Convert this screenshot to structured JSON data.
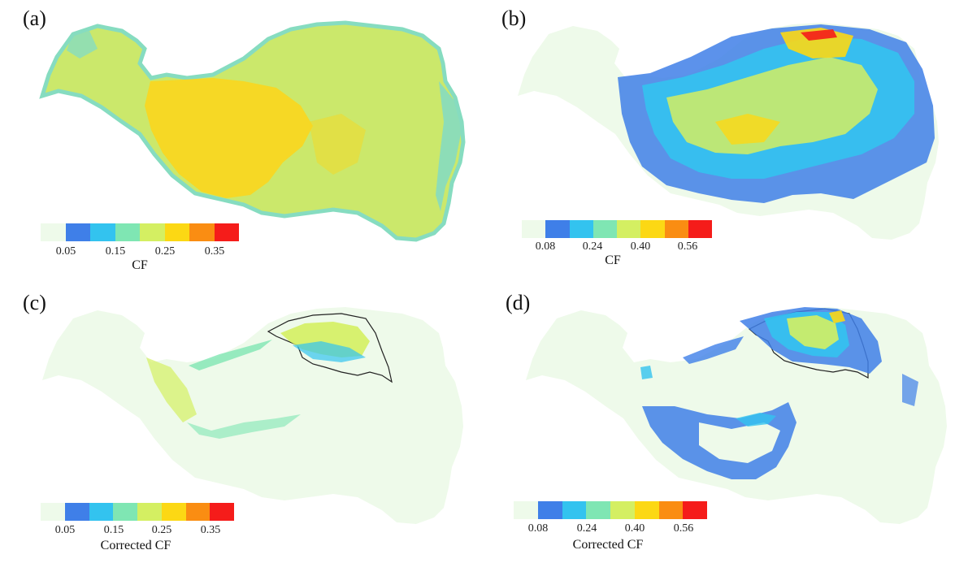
{
  "panels": {
    "a": {
      "label": "(a)",
      "legend_title": "CF",
      "ticks": [
        "0.05",
        "0.15",
        "0.25",
        "0.35"
      ]
    },
    "b": {
      "label": "(b)",
      "legend_title": "CF",
      "ticks": [
        "0.08",
        "0.24",
        "0.40",
        "0.56"
      ]
    },
    "c": {
      "label": "(c)",
      "legend_title": "Corrected CF",
      "ticks": [
        "0.05",
        "0.15",
        "0.25",
        "0.35"
      ]
    },
    "d": {
      "label": "(d)",
      "legend_title": "Corrected CF",
      "ticks": [
        "0.08",
        "0.24",
        "0.40",
        "0.56"
      ]
    }
  },
  "colors": {
    "background_class": "#eefaea",
    "classes": [
      "#eefaea",
      "#3f7fe8",
      "#33c3ef",
      "#7fe6b3",
      "#d4ef62",
      "#fcd814",
      "#fa8d12",
      "#f51c1a"
    ],
    "panel_a_main": "#cbe86b",
    "panel_a_hot": "#f8d722",
    "panel_a_edge": "#86dcc0",
    "outline": "#222222"
  }
}
